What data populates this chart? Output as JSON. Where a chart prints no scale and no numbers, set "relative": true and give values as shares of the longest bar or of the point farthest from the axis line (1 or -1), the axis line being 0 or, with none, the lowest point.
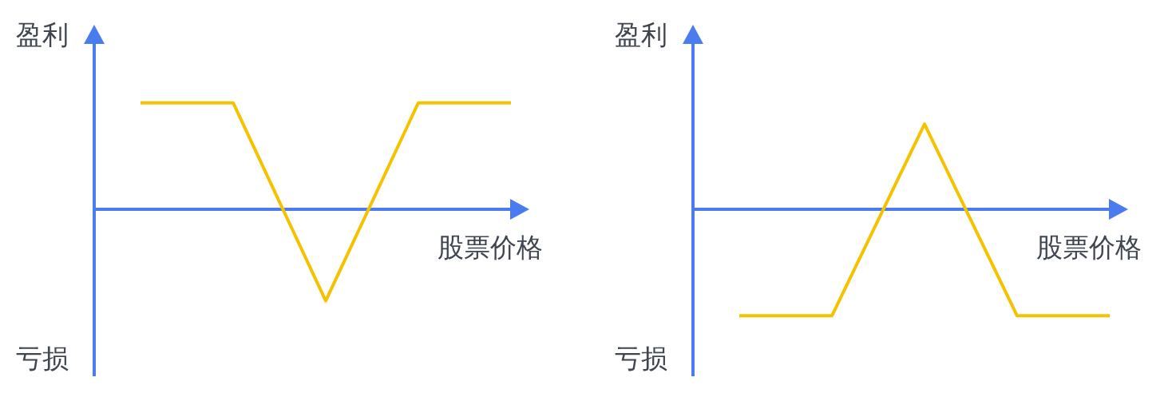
{
  "chart_data": [
    {
      "type": "line",
      "relative": true,
      "ylabel": "盈利",
      "xlabel": "股票价格",
      "annotations": [
        "亏损"
      ],
      "categories": [
        null,
        null,
        null,
        null,
        null
      ],
      "series": [
        {
          "color": "#f5c200",
          "values": [
            1,
            1,
            -0.86,
            1,
            1
          ]
        }
      ],
      "ref_lines": [
        {
          "axis": "y",
          "value": 0,
          "color": "#4a7cf0"
        }
      ]
    },
    {
      "type": "line",
      "relative": true,
      "ylabel": "盈利",
      "xlabel": "股票价格",
      "annotations": [
        "亏损"
      ],
      "categories": [
        null,
        null,
        null,
        null,
        null
      ],
      "series": [
        {
          "color": "#f5c200",
          "values": [
            -1,
            -1,
            0.8,
            -1,
            -1
          ]
        }
      ],
      "ref_lines": [
        {
          "axis": "y",
          "value": 0,
          "color": "#4a7cf0"
        }
      ]
    }
  ]
}
